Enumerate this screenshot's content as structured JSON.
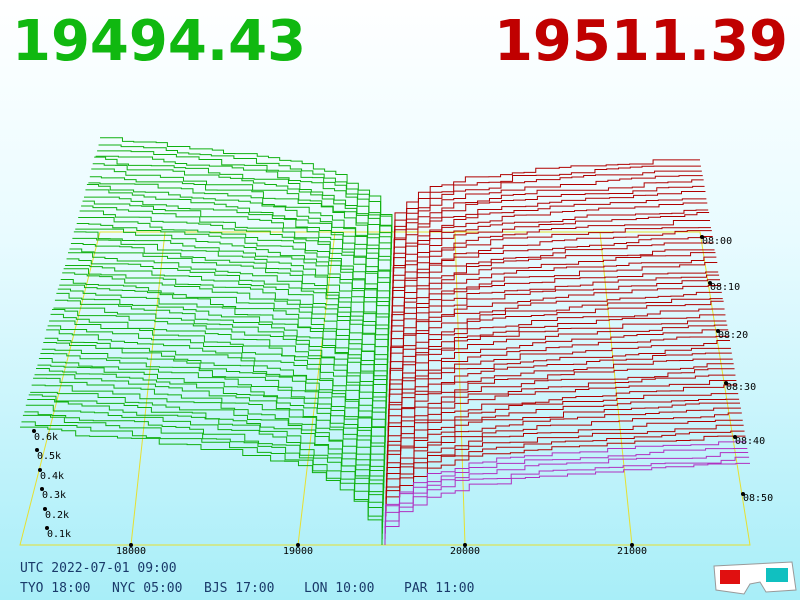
{
  "bid_price": "19494.43",
  "ask_price": "19511.39",
  "price_labels": [
    "18000",
    "19000",
    "20000",
    "21000"
  ],
  "depth_labels": [
    "0.1k",
    "0.2k",
    "0.3k",
    "0.4k",
    "0.5k",
    "0.6k"
  ],
  "time_labels": [
    "08:00",
    "08:10",
    "08:20",
    "08:30",
    "08:40",
    "08:50"
  ],
  "footer": {
    "utc": "UTC 2022-07-01 09:00",
    "cities": [
      "TYO 18:00",
      "NYC 05:00",
      "BJS 17:00",
      "LON 10:00",
      "PAR 11:00"
    ]
  }
}
